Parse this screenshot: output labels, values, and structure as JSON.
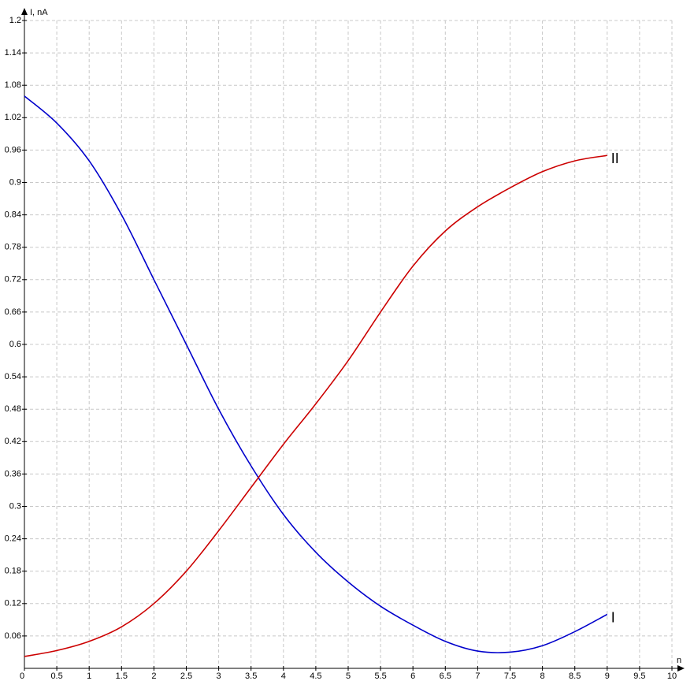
{
  "chart_data": {
    "type": "line",
    "x_label": "n",
    "y_label": "I, nA",
    "x": [
      0,
      0.5,
      1,
      1.5,
      2,
      2.5,
      3,
      3.5,
      4,
      4.5,
      5,
      5.5,
      6,
      6.5,
      7,
      7.5,
      8,
      8.5,
      9
    ],
    "series": [
      {
        "name": "I",
        "color": "#0000cc",
        "values": [
          1.06,
          1.01,
          0.94,
          0.84,
          0.72,
          0.6,
          0.48,
          0.375,
          0.285,
          0.215,
          0.16,
          0.115,
          0.08,
          0.05,
          0.032,
          0.03,
          0.042,
          0.068,
          0.1
        ]
      },
      {
        "name": "II",
        "color": "#cc0000",
        "values": [
          0.022,
          0.033,
          0.05,
          0.077,
          0.12,
          0.18,
          0.255,
          0.335,
          0.415,
          0.49,
          0.57,
          0.66,
          0.745,
          0.81,
          0.855,
          0.89,
          0.92,
          0.94,
          0.95
        ]
      }
    ],
    "xlim": [
      0,
      10
    ],
    "ylim": [
      0,
      1.2
    ],
    "xticks": [
      0,
      0.5,
      1,
      1.5,
      2,
      2.5,
      3,
      3.5,
      4,
      4.5,
      5,
      5.5,
      6,
      6.5,
      7,
      7.5,
      8,
      8.5,
      9,
      9.5,
      10
    ],
    "yticks": [
      0.06,
      0.12,
      0.18,
      0.24,
      0.3,
      0.36,
      0.42,
      0.48,
      0.54,
      0.6,
      0.66,
      0.72,
      0.78,
      0.84,
      0.9,
      0.96,
      1.02,
      1.08,
      1.14,
      1.2
    ],
    "grid": true
  }
}
